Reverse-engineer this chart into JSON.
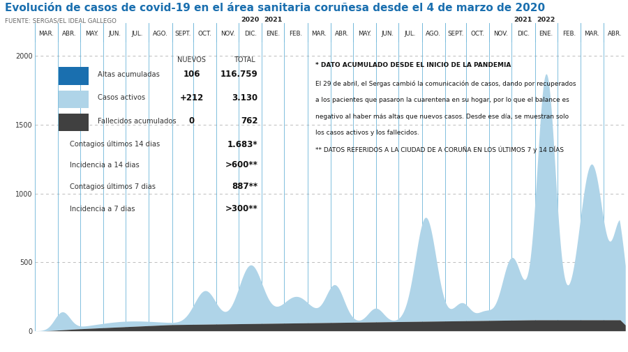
{
  "title": "Evolución de casos de covid-19 en el área sanitaria coruñesa desde el 4 de marzo de 2020",
  "source": "FUENTE: SERGAS/EL IDEAL GALLEGO",
  "title_color": "#1a6faf",
  "source_color": "#666666",
  "bg_color": "#ffffff",
  "grid_color": "#5bacd4",
  "dashed_color": "#bbbbbb",
  "yticks": [
    0,
    500,
    1000,
    1500,
    2000
  ],
  "ylim": [
    0,
    2100
  ],
  "month_labels": [
    "MAR.",
    "ABR.",
    "MAY.",
    "JUN.",
    "JUL.",
    "AGO.",
    "SEPT.",
    "OCT.",
    "NOV.",
    "DIC.",
    "ENE.",
    "FEB.",
    "MAR.",
    "ABR.",
    "MAY.",
    "JUN.",
    "JUL.",
    "AGO.",
    "SEPT.",
    "OCT.",
    "NOV.",
    "DIC.",
    "ENE.",
    "FEB.",
    "MAR.",
    "ABR."
  ],
  "active_color": "#afd4e8",
  "deceased_color": "#404040",
  "altas_color": "#1a6faf",
  "legend_box": {
    "rows": [
      {
        "label": "Altas acumuladas",
        "nuevos": "106",
        "total": "116.759",
        "color": "#1a6faf"
      },
      {
        "label": "Casos activos",
        "nuevos": "+212",
        "total": "3.130",
        "color": "#afd4e8"
      },
      {
        "label": "Fallecidos acumulados",
        "nuevos": "0",
        "total": "762",
        "color": "#404040"
      },
      {
        "label": "Contagios últimos 14 dias",
        "nuevos": "",
        "total": "1.683*",
        "color": null
      },
      {
        "label": "Incidencia a 14 dias",
        "nuevos": "",
        "total": ">600**",
        "color": null
      },
      {
        "label": "Contagios últimos 7 dias",
        "nuevos": "",
        "total": "887**",
        "color": null
      },
      {
        "label": "Incidencia a 7 dias",
        "nuevos": "",
        "total": ">300**",
        "color": null
      }
    ]
  },
  "note_lines": [
    {
      "text": "* DATO ACUMULADO DESDE EL INICIO DE LA PANDEMIA",
      "bold": true
    },
    {
      "text": "El 29 de abril, el Sergas cambió la comunicación de casos, dando por recuperados",
      "bold": false
    },
    {
      "text": "a los pacientes que pasaron la cuarentena en su hogar, por lo que el balance es",
      "bold": false
    },
    {
      "text": "negativo al haber más altas que nuevos casos. Desde ese día, se muestran solo",
      "bold": false
    },
    {
      "text": "los casos activos y los fallecidos.",
      "bold": false
    },
    {
      "text": "** DATOS REFERIDOS A LA CIUDAD DE A CORUÑA EN LOS ÚLTIMOS 7 y 14 DÍAS",
      "bold": false
    }
  ]
}
